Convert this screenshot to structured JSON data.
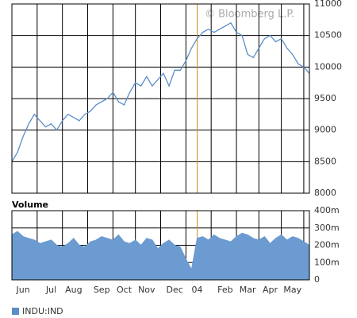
{
  "chart_data": [
    {
      "type": "line",
      "annotation": "© Bloomberg L.P.",
      "series": [
        {
          "name": "INDU:IND",
          "color": "#5a8ec8",
          "values": [
            8500,
            8650,
            8900,
            9100,
            9250,
            9150,
            9050,
            9100,
            9000,
            9150,
            9250,
            9200,
            9150,
            9250,
            9300,
            9400,
            9450,
            9500,
            9600,
            9450,
            9400,
            9600,
            9750,
            9700,
            9850,
            9700,
            9800,
            9900,
            9700,
            9950,
            9950,
            10100,
            10300,
            10450,
            10550,
            10600,
            10550,
            10600,
            10650,
            10700,
            10550,
            10500,
            10200,
            10150,
            10300,
            10450,
            10500,
            10400,
            10450,
            10300,
            10200,
            10050,
            10000,
            9900
          ]
        }
      ],
      "ylim": [
        8000,
        11000
      ],
      "yticks": [
        8000,
        8500,
        9000,
        9500,
        10000,
        10500,
        11000
      ],
      "grid": true,
      "legend": "bottom-left"
    },
    {
      "type": "area",
      "title": "Volume",
      "categories": [
        null,
        null,
        "Jun",
        null,
        null,
        null,
        null,
        "Jul",
        null,
        null,
        null,
        "Aug",
        null,
        null,
        null,
        null,
        "Sep",
        null,
        null,
        null,
        "Oct",
        null,
        null,
        null,
        "Nov",
        null,
        null,
        null,
        null,
        "Dec",
        null,
        null,
        null,
        "04",
        null,
        null,
        null,
        null,
        "Feb",
        null,
        null,
        null,
        "Mar",
        null,
        null,
        null,
        "Apr",
        null,
        null,
        null,
        "May",
        null,
        null,
        null
      ],
      "values": [
        260,
        280,
        250,
        240,
        230,
        210,
        220,
        230,
        200,
        190,
        210,
        240,
        200,
        190,
        220,
        230,
        250,
        240,
        230,
        260,
        220,
        210,
        230,
        200,
        240,
        230,
        180,
        210,
        230,
        200,
        190,
        120,
        60,
        240,
        250,
        230,
        260,
        240,
        230,
        220,
        250,
        270,
        260,
        240,
        230,
        250,
        210,
        240,
        260,
        230,
        250,
        240,
        220,
        200
      ],
      "color": "#6b9bd1",
      "ylim": [
        0,
        400
      ],
      "yticks": [
        0,
        {
          "value": 100,
          "label": "100m"
        },
        {
          "value": 200,
          "label": "200m"
        },
        {
          "value": 300,
          "label": "300m"
        },
        {
          "value": 400,
          "label": "400m"
        }
      ],
      "grid": true
    }
  ]
}
